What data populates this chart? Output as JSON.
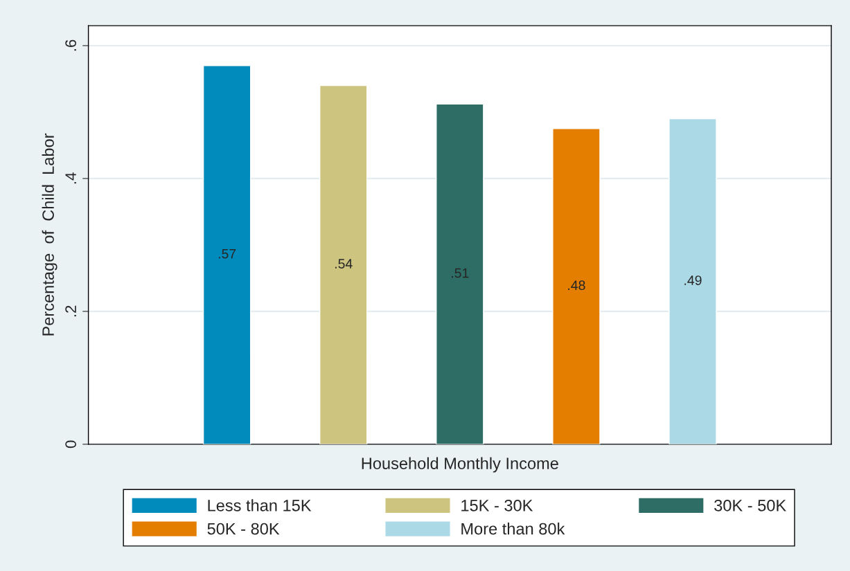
{
  "chart_data": {
    "type": "bar",
    "xlabel": "Household Monthly Income",
    "ylabel": "Percentage  of  Child  Labor",
    "categories": [
      null,
      null,
      null,
      null,
      null
    ],
    "series": [
      {
        "name": "Less than 15K",
        "color": "#008bbc",
        "values": [
          0.57,
          null,
          null,
          null,
          null
        ],
        "value_labels": [
          ".57",
          null,
          null,
          null,
          null
        ]
      },
      {
        "name": "15K - 30K",
        "color": "#cdc47f",
        "values": [
          null,
          0.54,
          null,
          null,
          null
        ],
        "value_labels": [
          null,
          ".54",
          null,
          null,
          null
        ]
      },
      {
        "name": "30K - 50K",
        "color": "#2e6d66",
        "values": [
          null,
          null,
          0.512,
          null,
          null
        ],
        "value_labels": [
          null,
          null,
          ".51",
          null,
          null
        ]
      },
      {
        "name": "50K - 80K",
        "color": "#e37e00",
        "values": [
          null,
          null,
          null,
          0.475,
          null
        ],
        "value_labels": [
          null,
          null,
          null,
          ".48",
          null
        ]
      },
      {
        "name": "More than 80k",
        "color": "#acd9e6",
        "values": [
          null,
          null,
          null,
          null,
          0.49
        ],
        "value_labels": [
          null,
          null,
          null,
          null,
          ".49"
        ]
      }
    ],
    "ylim": [
      0,
      0.63
    ],
    "yticks": [
      {
        "value": 0,
        "label": "0"
      },
      {
        "value": 0.2,
        "label": ".2"
      },
      {
        "value": 0.4,
        "label": ".4"
      },
      {
        "value": 0.6,
        "label": ".6"
      }
    ],
    "grid": "y",
    "legend": "bottom"
  }
}
